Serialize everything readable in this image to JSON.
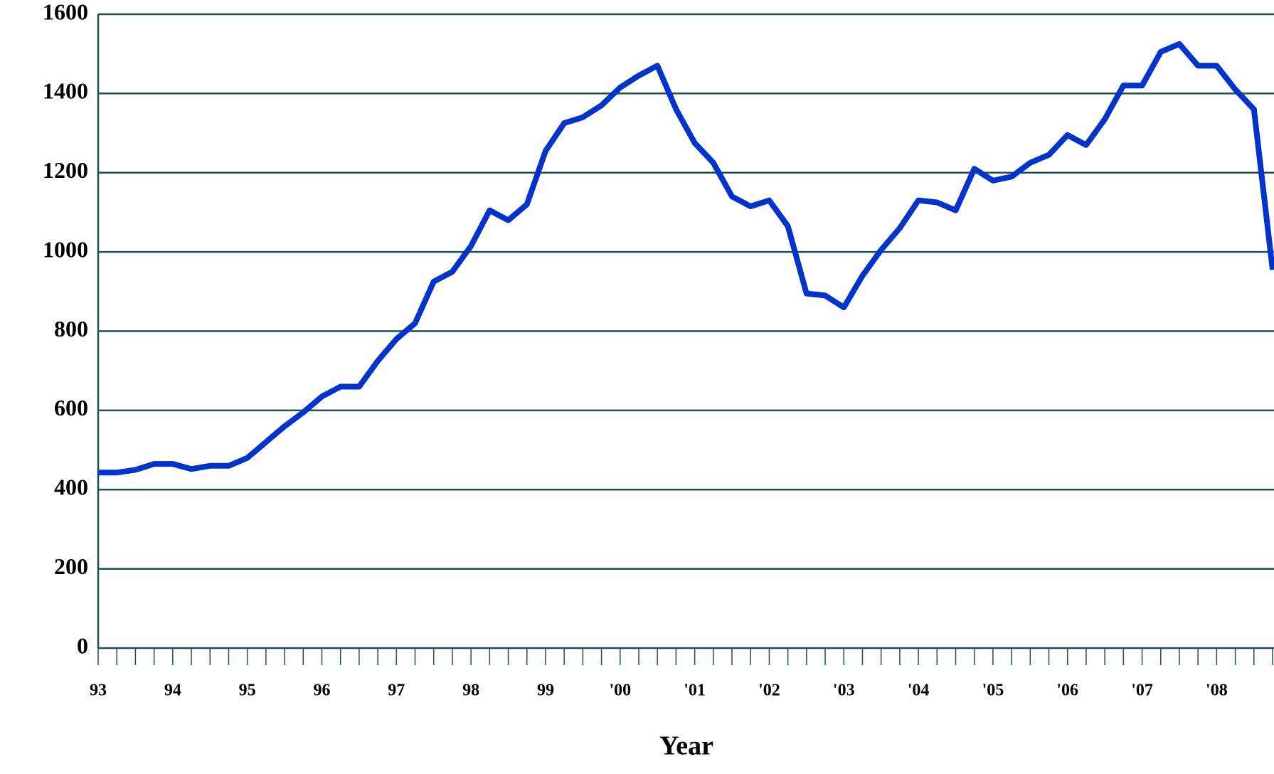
{
  "chart_data": {
    "type": "line",
    "x_label": "Year",
    "categories": [
      "93",
      null,
      null,
      null,
      "94",
      null,
      null,
      null,
      "95",
      null,
      null,
      null,
      "96",
      null,
      null,
      null,
      "97",
      null,
      null,
      null,
      "98",
      null,
      null,
      null,
      "99",
      null,
      null,
      null,
      "'00",
      null,
      null,
      null,
      "'01",
      null,
      null,
      null,
      "'02",
      null,
      null,
      null,
      "'03",
      null,
      null,
      null,
      "'04",
      null,
      null,
      null,
      "'05",
      null,
      null,
      null,
      "'06",
      null,
      null,
      null,
      "'07",
      null,
      null,
      null,
      "'08",
      null,
      null,
      null
    ],
    "values": [
      443,
      443,
      450,
      465,
      465,
      452,
      460,
      460,
      480,
      520,
      560,
      595,
      635,
      660,
      660,
      725,
      780,
      820,
      925,
      950,
      1015,
      1105,
      1080,
      1120,
      1255,
      1325,
      1340,
      1370,
      1415,
      1445,
      1470,
      1360,
      1275,
      1225,
      1140,
      1115,
      1130,
      1065,
      895,
      890,
      860,
      940,
      1005,
      1060,
      1130,
      1125,
      1105,
      1210,
      1180,
      1190,
      1225,
      1245,
      1295,
      1270,
      1335,
      1420,
      1420,
      1505,
      1525,
      1470,
      1470,
      1410,
      1360,
      955
    ],
    "color": "#0033cc",
    "ylim": [
      0,
      1600
    ],
    "yticks": [
      0,
      200,
      400,
      600,
      800,
      1000,
      1200,
      1400,
      1600
    ],
    "grid": true
  }
}
